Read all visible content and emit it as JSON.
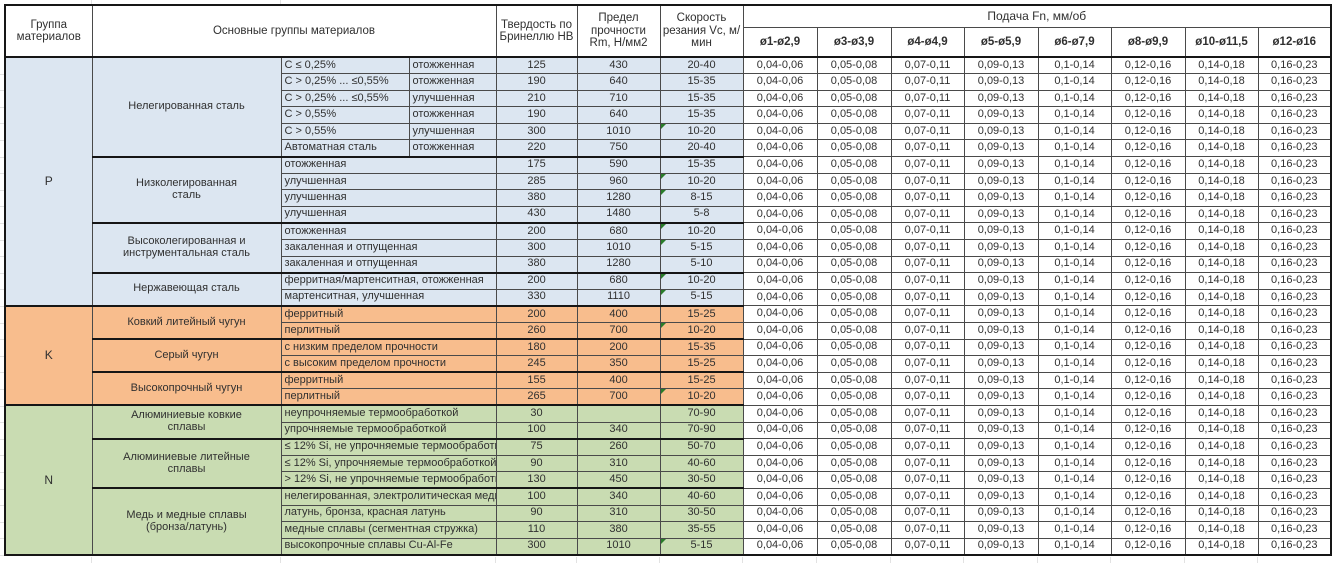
{
  "header": {
    "col_group": "Группа материалов",
    "col_materials": "Основные группы материалов",
    "col_hardness": "Твердость по Бринеллю HB",
    "col_strength": "Предел прочности Rm, Н/мм2",
    "col_speed": "Скорость резания Vc, м/мин",
    "feed_title": "Подача Fn, мм/об",
    "feed_cols": [
      "ø1-ø2,9",
      "ø3-ø3,9",
      "ø4-ø4,9",
      "ø5-ø5,9",
      "ø6-ø7,9",
      "ø8-ø9,9",
      "ø10-ø11,5",
      "ø12-ø16"
    ]
  },
  "feed_values": [
    "0,04-0,06",
    "0,05-0,08",
    "0,07-0,11",
    "0,09-0,13",
    "0,1-0,14",
    "0,12-0,16",
    "0,14-0,18",
    "0,16-0,23"
  ],
  "colors": {
    "group_p": "#dce6f1",
    "group_k": "#f8bd8d",
    "group_n": "#c9dcb2",
    "error_triangle": "#2a7c2a"
  },
  "groups": [
    {
      "code": "P",
      "color": "#dce6f1",
      "subgroups": [
        {
          "name": "Нелегированная сталь",
          "rows": [
            {
              "desc_a": "C ≤ 0,25%",
              "desc_b": "отожженная",
              "hb": "125",
              "rm": "430",
              "vc": "20-40",
              "mark": false
            },
            {
              "desc_a": "C > 0,25% ... ≤0,55%",
              "desc_b": "отожженная",
              "hb": "190",
              "rm": "640",
              "vc": "15-35",
              "mark": false
            },
            {
              "desc_a": "C > 0,25% ... ≤0,55%",
              "desc_b": "улучшенная",
              "hb": "210",
              "rm": "710",
              "vc": "15-35",
              "mark": false
            },
            {
              "desc_a": "C > 0,55%",
              "desc_b": "отожженная",
              "hb": "190",
              "rm": "640",
              "vc": "15-35",
              "mark": false
            },
            {
              "desc_a": "C > 0,55%",
              "desc_b": "улучшенная",
              "hb": "300",
              "rm": "1010",
              "vc": "10-20",
              "mark": true
            },
            {
              "desc_a": "Автоматная сталь",
              "desc_b": "отожженная",
              "hb": "220",
              "rm": "750",
              "vc": "20-40",
              "mark": false
            }
          ]
        },
        {
          "name": "Низколегированная\nсталь",
          "rows": [
            {
              "desc": "отожженная",
              "hb": "175",
              "rm": "590",
              "vc": "15-35",
              "mark": false
            },
            {
              "desc": "улучшенная",
              "hb": "285",
              "rm": "960",
              "vc": "10-20",
              "mark": true
            },
            {
              "desc": "улучшенная",
              "hb": "380",
              "rm": "1280",
              "vc": "8-15",
              "mark": true
            },
            {
              "desc": "улучшенная",
              "hb": "430",
              "rm": "1480",
              "vc": "5-8",
              "mark": false
            }
          ]
        },
        {
          "name": "Высоколегированная и\nинструментальная сталь",
          "rows": [
            {
              "desc": "отожженная",
              "hb": "200",
              "rm": "680",
              "vc": "10-20",
              "mark": true
            },
            {
              "desc": "закаленная и отпущенная",
              "hb": "300",
              "rm": "1010",
              "vc": "5-15",
              "mark": true
            },
            {
              "desc": "закаленная и отпущенная",
              "hb": "380",
              "rm": "1280",
              "vc": "5-10",
              "mark": false
            }
          ]
        },
        {
          "name": "Нержавеющая сталь",
          "rows": [
            {
              "desc": "ферритная/мартенситная, отожженная",
              "hb": "200",
              "rm": "680",
              "vc": "10-20",
              "mark": true
            },
            {
              "desc": "мартенситная, улучшенная",
              "hb": "330",
              "rm": "1110",
              "vc": "5-15",
              "mark": true
            }
          ]
        }
      ]
    },
    {
      "code": "K",
      "color": "#f8bd8d",
      "subgroups": [
        {
          "name": "Ковкий литейный чугун",
          "rows": [
            {
              "desc": "ферритный",
              "hb": "200",
              "rm": "400",
              "vc": "15-25",
              "mark": false
            },
            {
              "desc": "перлитный",
              "hb": "260",
              "rm": "700",
              "vc": "10-20",
              "mark": true
            }
          ]
        },
        {
          "name": "Серый чугун",
          "rows": [
            {
              "desc": "с низким пределом прочности",
              "hb": "180",
              "rm": "200",
              "vc": "15-35",
              "mark": false
            },
            {
              "desc": "с высоким пределом прочности",
              "hb": "245",
              "rm": "350",
              "vc": "15-25",
              "mark": false
            }
          ]
        },
        {
          "name": "Высокопрочный чугун",
          "rows": [
            {
              "desc": "ферритный",
              "hb": "155",
              "rm": "400",
              "vc": "15-25",
              "mark": false
            },
            {
              "desc": "перлитный",
              "hb": "265",
              "rm": "700",
              "vc": "10-20",
              "mark": true
            }
          ]
        }
      ]
    },
    {
      "code": "N",
      "color": "#c9dcb2",
      "subgroups": [
        {
          "name": "Алюминиевые ковкие\nсплавы",
          "rows": [
            {
              "desc": "неупрочняемые термообработкой",
              "hb": "30",
              "rm": "",
              "vc": "70-90",
              "mark": false
            },
            {
              "desc": "упрочняемые термообработкой",
              "hb": "100",
              "rm": "340",
              "vc": "70-90",
              "mark": false
            }
          ]
        },
        {
          "name": "Алюминиевые литейные\nсплавы",
          "rows": [
            {
              "desc": "≤ 12% Si, не упрочняемые термообработкой",
              "hb": "75",
              "rm": "260",
              "vc": "50-70",
              "mark": false
            },
            {
              "desc": "≤ 12% Si, упрочняемые термообработкой",
              "hb": "90",
              "rm": "310",
              "vc": "40-60",
              "mark": false
            },
            {
              "desc": "> 12% Si, не упрочняемые термообработкой",
              "hb": "130",
              "rm": "450",
              "vc": "30-50",
              "mark": false
            }
          ]
        },
        {
          "name": "Медь и медные сплавы\n(бронза/латунь)",
          "rows": [
            {
              "desc": "нелегированная, электролитическая медь",
              "hb": "100",
              "rm": "340",
              "vc": "40-60",
              "mark": false
            },
            {
              "desc": "латунь, бронза, красная латунь",
              "hb": "90",
              "rm": "310",
              "vc": "30-50",
              "mark": false
            },
            {
              "desc": "медные сплавы (сегментная стружка)",
              "hb": "110",
              "rm": "380",
              "vc": "35-55",
              "mark": false
            },
            {
              "desc": "высокопрочные сплавы Cu-Al-Fe",
              "hb": "300",
              "rm": "1010",
              "vc": "5-15",
              "mark": true
            }
          ]
        }
      ]
    }
  ]
}
